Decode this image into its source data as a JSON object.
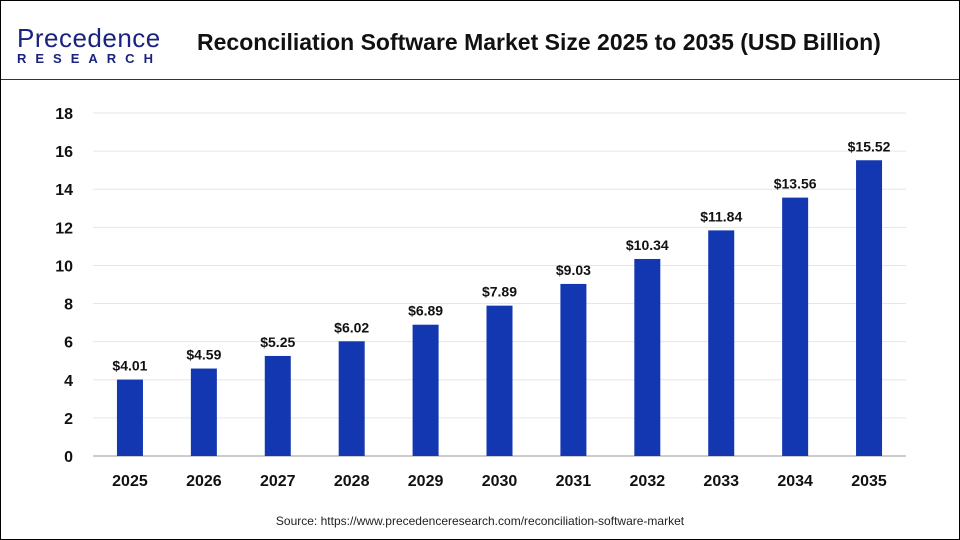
{
  "logo": {
    "line1": "Precedence",
    "line2": "RESEARCH"
  },
  "title": "Reconciliation Software Market Size 2025 to 2035 (USD Billion)",
  "source": "Source: https://www.precedenceresearch.com/reconciliation-software-market",
  "chart_data": {
    "type": "bar",
    "title": "Reconciliation Software Market Size 2025 to 2035 (USD Billion)",
    "categories": [
      "2025",
      "2026",
      "2027",
      "2028",
      "2029",
      "2030",
      "2031",
      "2032",
      "2033",
      "2034",
      "2035"
    ],
    "values": [
      4.01,
      4.59,
      5.25,
      6.02,
      6.89,
      7.89,
      9.03,
      10.34,
      11.84,
      13.56,
      15.52
    ],
    "data_labels": [
      "$4.01",
      "$4.59",
      "$5.25",
      "$6.02",
      "$6.89",
      "$7.89",
      "$9.03",
      "$10.34",
      "$11.84",
      "$13.56",
      "$15.52"
    ],
    "yticks": [
      0,
      2,
      4,
      6,
      8,
      10,
      12,
      14,
      16,
      18
    ],
    "ylim": [
      0,
      18
    ],
    "grid": true,
    "bar_color": "#1237b0",
    "xlabel": "",
    "ylabel": ""
  }
}
